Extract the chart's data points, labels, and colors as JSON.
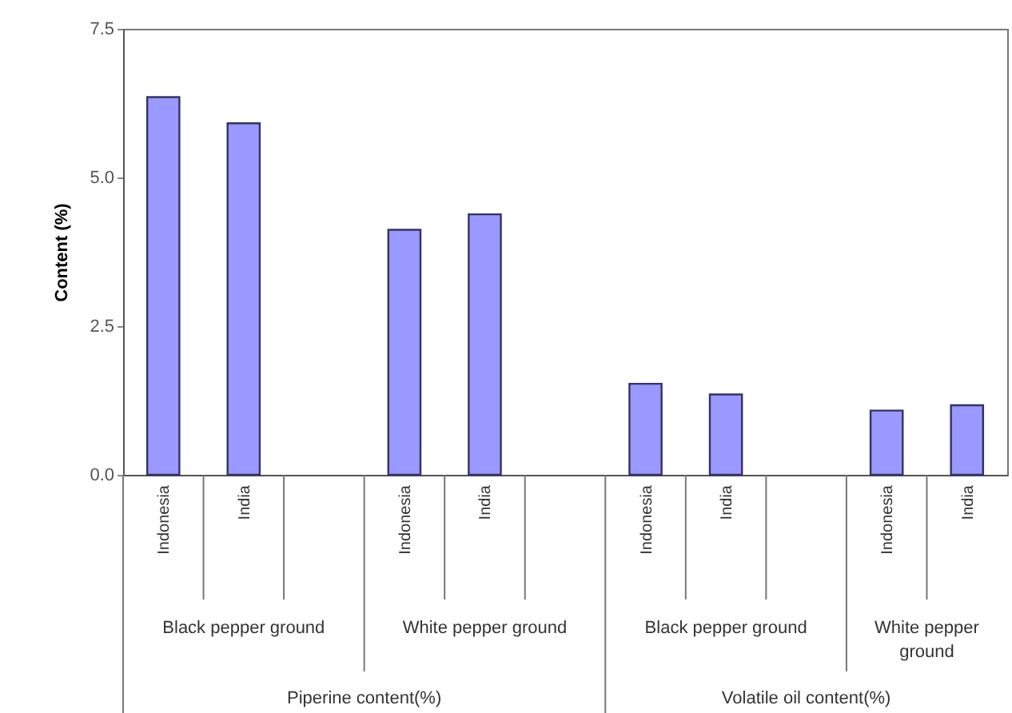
{
  "chart_data": {
    "type": "bar",
    "ylabel": "Content (%)",
    "categories": [
      "Indonesia",
      "India",
      null,
      "Indonesia",
      "India",
      null,
      "Indonesia",
      "India",
      null,
      "Indonesia",
      "India"
    ],
    "values": [
      6.35,
      5.91,
      null,
      4.12,
      4.38,
      null,
      1.53,
      1.35,
      null,
      1.08,
      1.17
    ],
    "color": "#9999ff",
    "ylim": [
      0,
      7.5
    ],
    "yticks": [
      {
        "value": 0,
        "label": "0.0"
      },
      {
        "value": 2.5,
        "label": "2.5"
      },
      {
        "value": 5,
        "label": "5.0"
      },
      {
        "value": 7.5,
        "label": "7.5"
      }
    ],
    "grid": false,
    "annotations": [
      "Black pepper ground",
      "White pepper ground",
      "Black pepper ground",
      "White pepper ground",
      "Piperine content(%)",
      "Volatile oil content(%)"
    ]
  }
}
